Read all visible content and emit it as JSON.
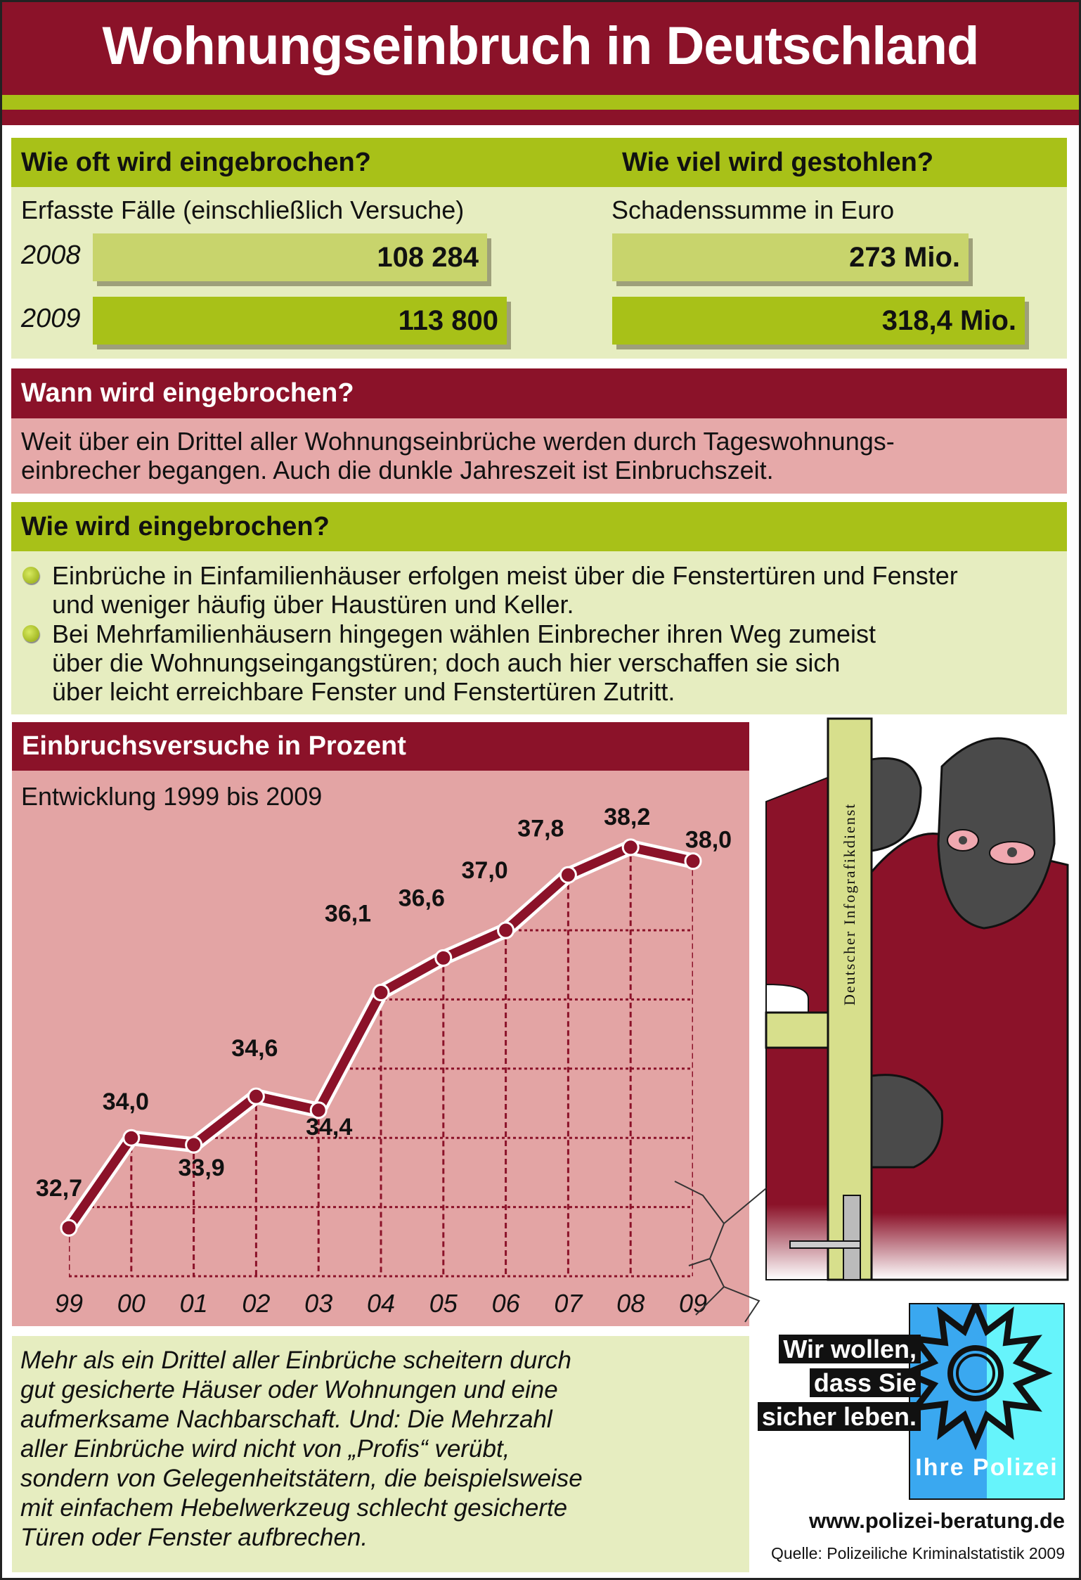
{
  "title": "Wohnungseinbruch in Deutschland",
  "how_often": {
    "heading": "Wie oft wird eingebrochen?",
    "subtitle": "Erfasste Fälle (einschließlich Versuche)",
    "rows": [
      {
        "year": "2008",
        "value": "108 284"
      },
      {
        "year": "2009",
        "value": "113 800"
      }
    ]
  },
  "how_much": {
    "heading": "Wie viel wird gestohlen?",
    "subtitle": "Schadenssumme in Euro",
    "rows": [
      {
        "year": "2008",
        "value": "273 Mio."
      },
      {
        "year": "2009",
        "value": "318,4 Mio."
      }
    ]
  },
  "when": {
    "heading": "Wann wird eingebrochen?",
    "lines": [
      "Weit über ein Drittel aller Wohnungseinbrüche werden durch Tageswohnungs-",
      "einbrecher begangen. Auch die dunkle Jahreszeit ist Einbruchszeit."
    ]
  },
  "how": {
    "heading": "Wie wird eingebrochen?",
    "bullets": [
      {
        "lines": [
          "Einbrüche in Einfamilienhäuser erfolgen meist über die Fenstertüren und Fenster",
          "und weniger häufig über Haustüren und Keller."
        ]
      },
      {
        "lines": [
          "Bei Mehrfamilienhäusern hingegen wählen Einbrecher ihren Weg zumeist",
          "über die Wohnungseingangstüren; doch auch hier verschaffen sie sich",
          "über leicht erreichbare Fenster und Fenstertüren Zutritt."
        ]
      }
    ]
  },
  "chart_data": {
    "type": "line",
    "title": "Einbruchsversuche in Prozent",
    "subtitle": "Entwicklung 1999 bis 2009",
    "categories": [
      "99",
      "00",
      "01",
      "02",
      "03",
      "04",
      "05",
      "06",
      "07",
      "08",
      "09"
    ],
    "values": [
      32.7,
      34.0,
      33.9,
      34.6,
      34.4,
      36.1,
      36.6,
      37.0,
      37.8,
      38.2,
      38.0
    ],
    "data_labels": [
      "32,7",
      "34,0",
      "33,9",
      "34,6",
      "34,4",
      "36,1",
      "36,6",
      "37,0",
      "37,8",
      "38,2",
      "38,0"
    ],
    "ylim": [
      32,
      38.2
    ],
    "grid": true,
    "grid_y": [
      32,
      33,
      34,
      35,
      36,
      37
    ],
    "line_color": "#8b1229",
    "background": "#e3a4a4"
  },
  "conclusion": {
    "lines": [
      "Mehr als ein Drittel aller Einbrüche scheitern durch",
      "gut gesicherte Häuser oder Wohnungen und eine",
      "aufmerksame Nachbarschaft. Und: Die Mehrzahl",
      "aller Einbrüche wird nicht von „Profis“ verübt,",
      "sondern von Gelegenheitstätern, die beispielsweise",
      "mit einfachem Hebelwerkzeug schlecht gesicherte",
      "Türen oder Fenster aufbrechen."
    ]
  },
  "illustration": {
    "watermark": "Deutscher Infografikdienst"
  },
  "police": {
    "slogan": [
      "Wir wollen,",
      "dass Sie",
      "sicher leben."
    ],
    "brand": "Ihre Polizei",
    "url": "www.polizei-beratung.de",
    "source": "Quelle: Polizeiliche Kriminalstatistik 2009"
  },
  "colors": {
    "maroon": "#8b1229",
    "green": "#a8c118",
    "light_green": "#e6edc0",
    "pink": "#e3a4a4",
    "police_blue": "#3aa8f0",
    "police_cyan": "#66f4fb"
  }
}
